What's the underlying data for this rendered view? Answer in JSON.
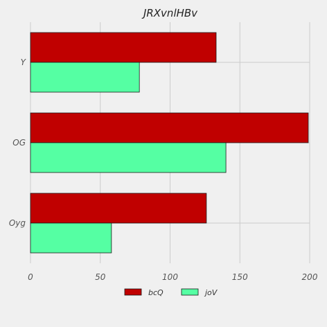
{
  "chart_data": {
    "type": "bar",
    "orientation": "horizontal",
    "title": "JRXvnlHBv",
    "xlabel": "",
    "ylabel": "",
    "categories": [
      "Y",
      "OG",
      "Oyg"
    ],
    "series": [
      {
        "name": "bcQ",
        "values": [
          133,
          199,
          126
        ],
        "color": "#c00000"
      },
      {
        "name": "joV",
        "values": [
          78,
          140,
          58
        ],
        "color": "#55ffa3"
      }
    ],
    "xlim": [
      0,
      200
    ],
    "xticks": [
      0,
      50,
      100,
      150,
      200
    ],
    "grid": true,
    "legend_position": "bottom-center",
    "background": "#f0f0f0"
  }
}
